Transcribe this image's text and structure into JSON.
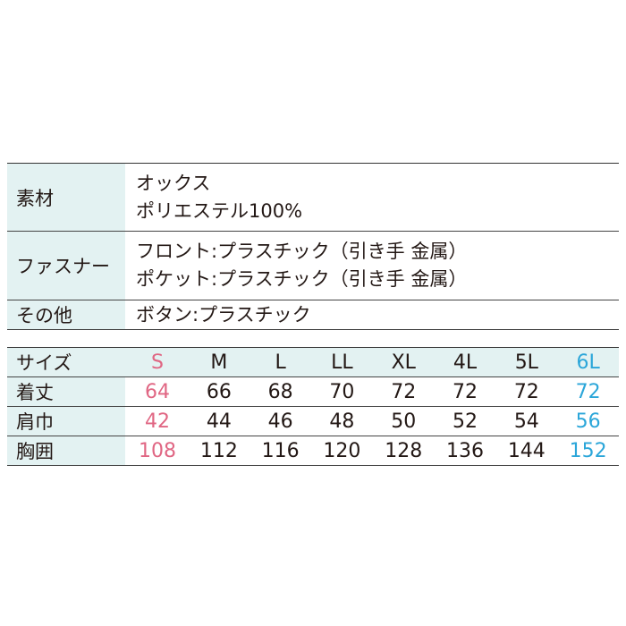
{
  "spec": [
    {
      "label": "素材",
      "lines": [
        "オックス",
        "ポリエステル100%"
      ]
    },
    {
      "label": "ファスナー",
      "lines": [
        "フロント:プラスチック（引き手 金属）",
        "ポケット:プラスチック（引き手 金属）"
      ]
    },
    {
      "label": "その他",
      "lines": [
        "ボタン:プラスチック"
      ]
    }
  ],
  "sizes": {
    "header_label": "サイズ",
    "columns": [
      "S",
      "M",
      "L",
      "LL",
      "XL",
      "4L",
      "5L",
      "6L"
    ],
    "rows": [
      {
        "label": "着丈",
        "values": [
          "64",
          "66",
          "68",
          "70",
          "72",
          "72",
          "72",
          "72"
        ]
      },
      {
        "label": "肩巾",
        "values": [
          "42",
          "44",
          "46",
          "48",
          "50",
          "52",
          "54",
          "56"
        ]
      },
      {
        "label": "胸囲",
        "values": [
          "108",
          "112",
          "116",
          "120",
          "128",
          "136",
          "144",
          "152"
        ]
      }
    ]
  },
  "colors": {
    "label_bg": "#e3f2f2",
    "first_size": "#e06683",
    "last_size": "#2ba6d9"
  }
}
